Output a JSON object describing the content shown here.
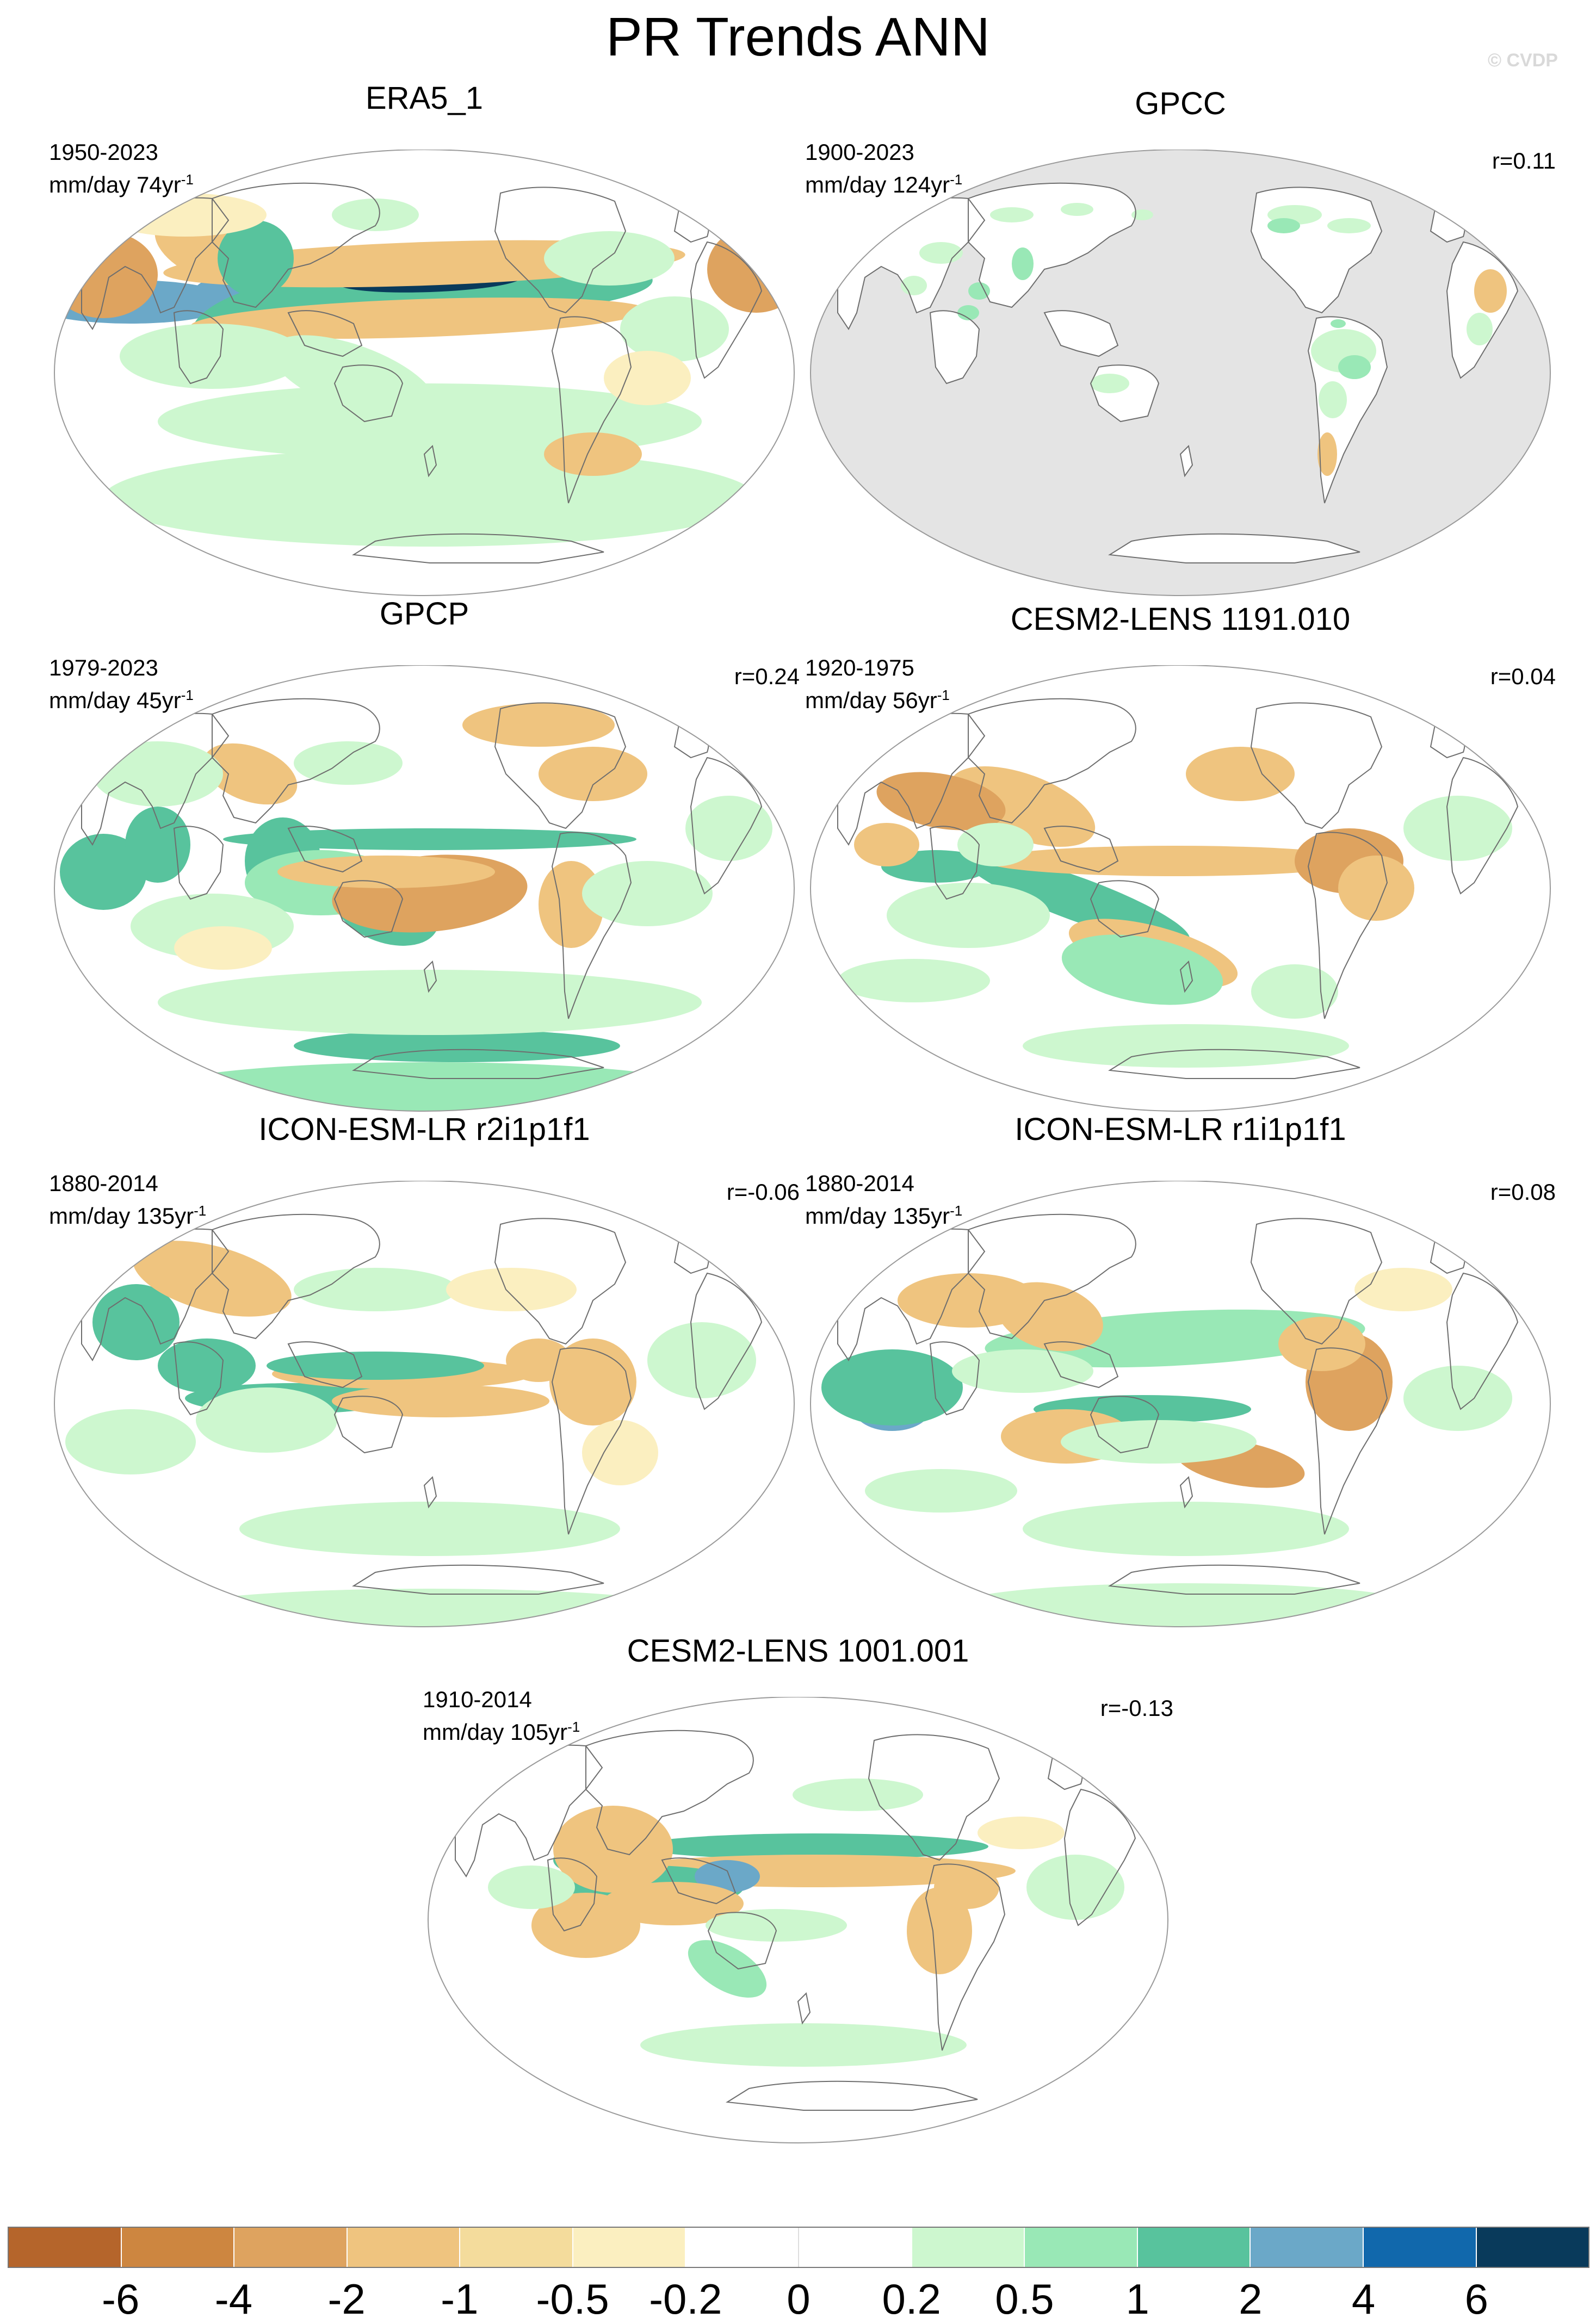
{
  "title": "PR Trends ANN",
  "watermark": "© CVDP",
  "panels": [
    {
      "name": "ERA5_1",
      "period": "1950-2023",
      "units": "mm/day 74yr",
      "units_exp": "-1",
      "r": "",
      "style": "era5"
    },
    {
      "name": "GPCC",
      "period": "1900-2023",
      "units": "mm/day 124yr",
      "units_exp": "-1",
      "r": "r=0.11",
      "style": "gpcc"
    },
    {
      "name": "GPCP",
      "period": "1979-2023",
      "units": "mm/day 45yr",
      "units_exp": "-1",
      "r": "r=0.24",
      "style": "gpcp"
    },
    {
      "name": "CESM2-LENS 1191.010",
      "period": "1920-1975",
      "units": "mm/day 56yr",
      "units_exp": "-1",
      "r": "r=0.04",
      "style": "model_a"
    },
    {
      "name": "ICON-ESM-LR r2i1p1f1",
      "period": "1880-2014",
      "units": "mm/day 135yr",
      "units_exp": "-1",
      "r": "r=-0.06",
      "style": "model_b"
    },
    {
      "name": "ICON-ESM-LR r1i1p1f1",
      "period": "1880-2014",
      "units": "mm/day 135yr",
      "units_exp": "-1",
      "r": "r=0.08",
      "style": "model_c"
    },
    {
      "name": "CESM2-LENS 1001.001",
      "period": "1910-2014",
      "units": "mm/day 105yr",
      "units_exp": "-1",
      "r": "r=-0.13",
      "style": "model_d"
    }
  ],
  "colorbar": {
    "colors": [
      "#b5652b",
      "#cd8640",
      "#dea35f",
      "#efc47f",
      "#f4dc9c",
      "#fbefc0",
      "#ffffff",
      "#ffffff",
      "#cdf7cf",
      "#99e8b6",
      "#58c39d",
      "#6ba8c8",
      "#1168ac",
      "#093a5b"
    ],
    "labels": [
      "-6",
      "-4",
      "-2",
      "-1",
      "-0.5",
      "-0.2",
      "0",
      "0.2",
      "0.5",
      "1",
      "2",
      "4",
      "6"
    ]
  },
  "legend": {
    "missing_color": "#e4e4e4"
  }
}
